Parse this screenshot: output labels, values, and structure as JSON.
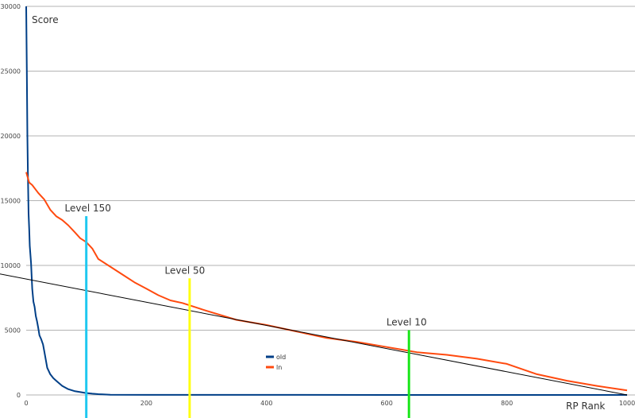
{
  "chart_data": {
    "type": "line",
    "ylabel": "Score",
    "xlabel": "RP Rank",
    "xlim": [
      0,
      1000
    ],
    "ylim": [
      0,
      30000
    ],
    "x_ticks": [
      "0",
      "200",
      "400",
      "600",
      "800",
      "1000"
    ],
    "y_ticks": [
      "0",
      "5000",
      "10000",
      "15000",
      "20000",
      "25000",
      "30000"
    ],
    "grid": "horizontal",
    "legend_position": "center",
    "series": [
      {
        "name": "old",
        "color": "#003f87",
        "x": [
          0,
          1,
          2,
          3,
          4,
          5,
          6,
          8,
          10,
          12,
          14,
          16,
          18,
          20,
          22,
          25,
          28,
          30,
          35,
          40,
          45,
          50,
          60,
          70,
          80,
          90,
          100,
          110,
          120,
          140,
          200,
          400,
          600,
          800,
          1000
        ],
        "y": [
          30000,
          25000,
          20000,
          16500,
          14000,
          12800,
          11500,
          10200,
          8200,
          7200,
          6800,
          6100,
          5700,
          5200,
          4600,
          4300,
          3900,
          3400,
          2100,
          1600,
          1300,
          1100,
          700,
          450,
          300,
          220,
          150,
          100,
          60,
          20,
          8,
          5,
          3,
          2,
          1
        ]
      },
      {
        "name": "ln",
        "color": "#ff4a0f",
        "x": [
          0,
          5,
          10,
          20,
          30,
          40,
          50,
          60,
          70,
          80,
          90,
          100,
          110,
          120,
          140,
          160,
          180,
          200,
          220,
          240,
          260,
          280,
          300,
          350,
          400,
          450,
          500,
          550,
          600,
          650,
          700,
          750,
          800,
          850,
          900,
          950,
          1000
        ],
        "y": [
          17200,
          16400,
          16200,
          15600,
          15100,
          14300,
          13800,
          13500,
          13100,
          12600,
          12100,
          11800,
          11300,
          10500,
          9900,
          9300,
          8700,
          8200,
          7700,
          7300,
          7100,
          6800,
          6500,
          5800,
          5400,
          4900,
          4400,
          4100,
          3700,
          3300,
          3100,
          2800,
          2400,
          1600,
          1100,
          700,
          350
        ]
      },
      {
        "name": "trend",
        "color": "#000000",
        "x": [
          -50,
          1000
        ],
        "y": [
          9400,
          0
        ]
      }
    ],
    "annotations": [
      {
        "label": "Level 150",
        "x": 100,
        "y_top": 13800,
        "color": "#1ec8f0"
      },
      {
        "label": "Level 50",
        "x": 272,
        "y_top": 9000,
        "color": "#ffff11"
      },
      {
        "label": "Level 10",
        "x": 637,
        "y_top": 5000,
        "color": "#19e619"
      }
    ]
  }
}
